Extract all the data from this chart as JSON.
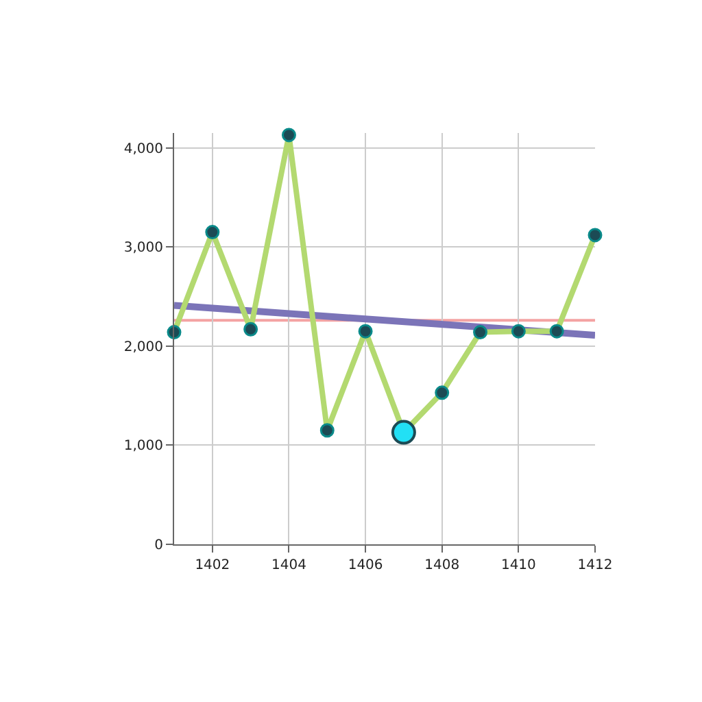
{
  "chart_data": {
    "type": "line",
    "x": [
      1401,
      1402,
      1403,
      1404,
      1405,
      1406,
      1407,
      1408,
      1409,
      1410,
      1411,
      1412
    ],
    "series": [
      {
        "color": "#b3d970",
        "values": [
          2140,
          3150,
          2170,
          4130,
          1150,
          2150,
          1130,
          1530,
          2140,
          2150,
          2150,
          3120
        ],
        "marker": "circle"
      },
      {
        "type": "scatter",
        "color": "#22e0f5",
        "x": [
          1407
        ],
        "values": [
          1130
        ],
        "marker": "circle"
      },
      {
        "type": "line",
        "color": "#7b74b8",
        "x": [
          1401,
          1412
        ],
        "values": [
          2410,
          2110
        ],
        "marker": "none"
      }
    ],
    "ref_lines": [
      {
        "axis": "y",
        "value": 2260,
        "color": "#f4a3a3"
      }
    ],
    "xlim": [
      1401,
      1412
    ],
    "xticks": [
      {
        "value": 1402,
        "label": "1402"
      },
      {
        "value": 1404,
        "label": "1404"
      },
      {
        "value": 1406,
        "label": "1406"
      },
      {
        "value": 1408,
        "label": "1408"
      },
      {
        "value": 1410,
        "label": "1410"
      },
      {
        "value": 1412,
        "label": "1412"
      }
    ],
    "ylim": [
      0,
      4150
    ],
    "yticks": [
      {
        "value": 0,
        "label": "0"
      },
      {
        "value": 1000,
        "label": "1,000"
      },
      {
        "value": 2000,
        "label": "2,000"
      },
      {
        "value": 3000,
        "label": "3,000"
      },
      {
        "value": 4000,
        "label": "4,000"
      }
    ],
    "grid": true
  }
}
